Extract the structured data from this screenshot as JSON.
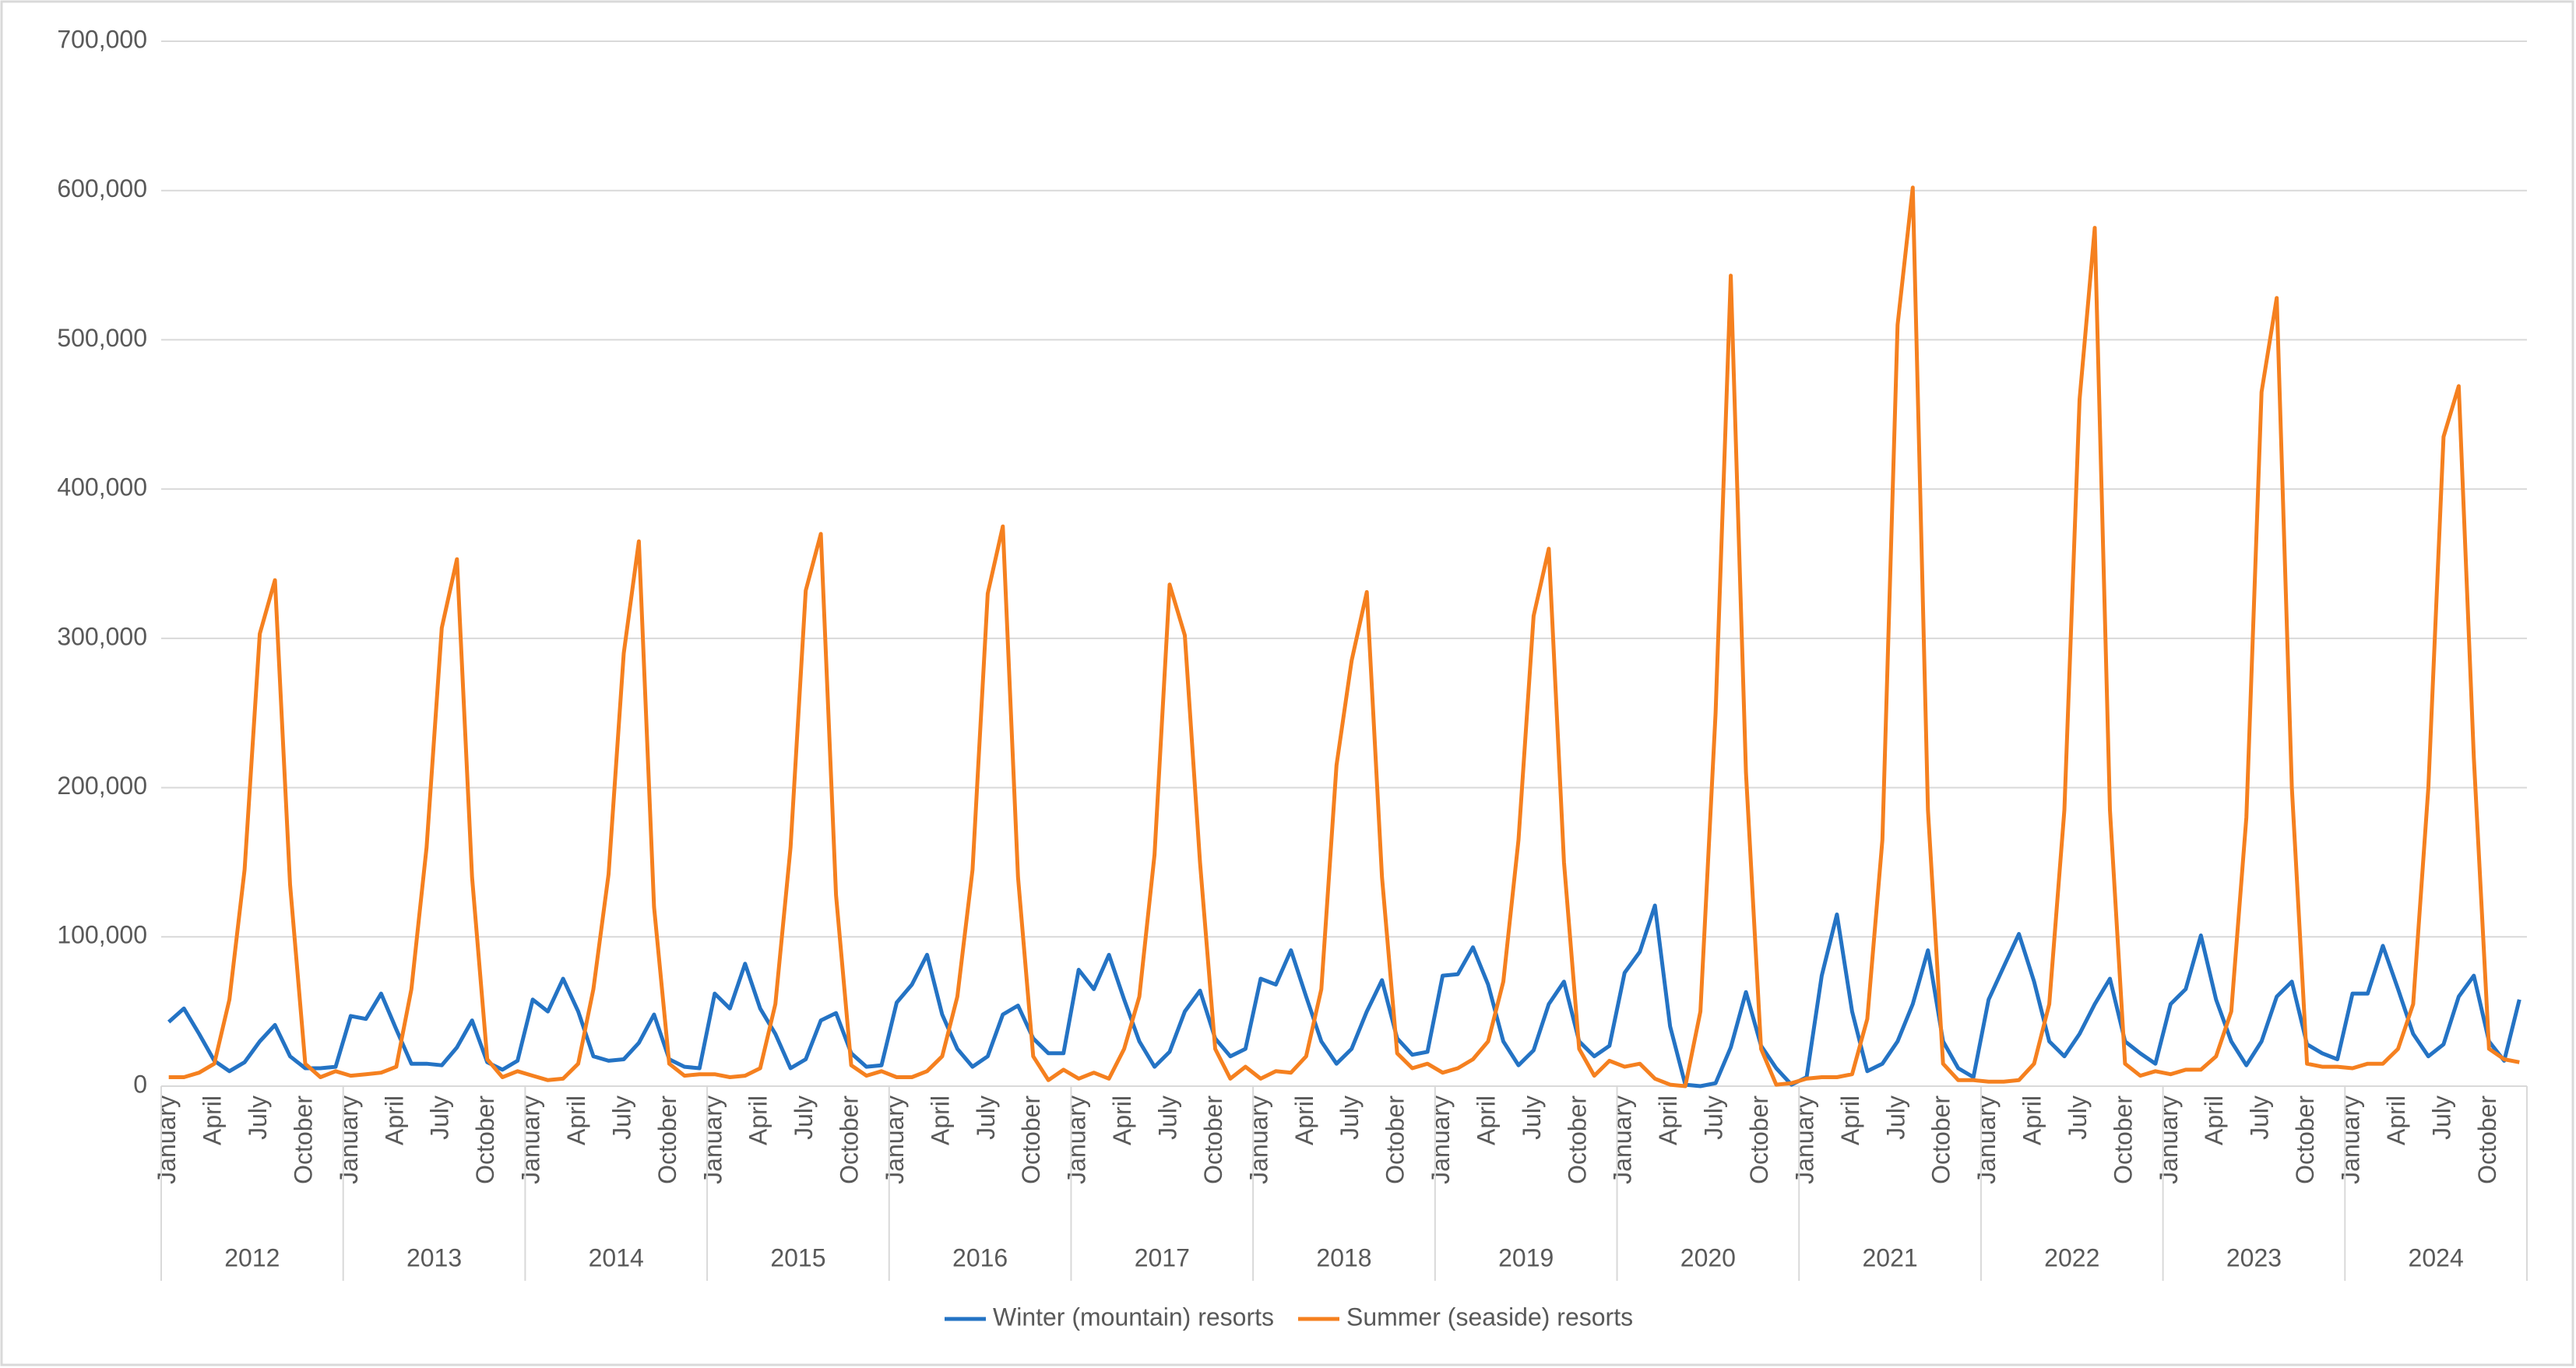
{
  "chart_data": {
    "type": "line",
    "categories": [
      "January",
      null,
      null,
      "April",
      null,
      null,
      "July",
      null,
      null,
      "October",
      null,
      null,
      "January",
      null,
      null,
      "April",
      null,
      null,
      "July",
      null,
      null,
      "October",
      null,
      null,
      "January",
      null,
      null,
      "April",
      null,
      null,
      "July",
      null,
      null,
      "October",
      null,
      null,
      "January",
      null,
      null,
      "April",
      null,
      null,
      "July",
      null,
      null,
      "October",
      null,
      null,
      "January",
      null,
      null,
      "April",
      null,
      null,
      "July",
      null,
      null,
      "October",
      null,
      null,
      "January",
      null,
      null,
      "April",
      null,
      null,
      "July",
      null,
      null,
      "October",
      null,
      null,
      "January",
      null,
      null,
      "April",
      null,
      null,
      "July",
      null,
      null,
      "October",
      null,
      null,
      "January",
      null,
      null,
      "April",
      null,
      null,
      "July",
      null,
      null,
      "October",
      null,
      null,
      "January",
      null,
      null,
      "April",
      null,
      null,
      "July",
      null,
      null,
      "October",
      null,
      null,
      "January",
      null,
      null,
      "April",
      null,
      null,
      "July",
      null,
      null,
      "October",
      null,
      null,
      "January",
      null,
      null,
      "April",
      null,
      null,
      "July",
      null,
      null,
      "October",
      null,
      null,
      "January",
      null,
      null,
      "April",
      null,
      null,
      "July",
      null,
      null,
      "October",
      null,
      null,
      "January",
      null,
      null,
      "April",
      null,
      null,
      "July",
      null,
      null,
      "October",
      null,
      null
    ],
    "years": [
      "2012",
      "2013",
      "2014",
      "2015",
      "2016",
      "2017",
      "2018",
      "2019",
      "2020",
      "2021",
      "2022",
      "2023",
      "2024"
    ],
    "series": [
      {
        "name": "Winter (mountain) resorts",
        "color": "#2473c4",
        "values": [
          43000,
          52000,
          35000,
          17000,
          10000,
          16000,
          30000,
          41000,
          20000,
          12000,
          12000,
          13000,
          47000,
          45000,
          62000,
          38000,
          15000,
          15000,
          14000,
          26000,
          44000,
          16000,
          11000,
          17000,
          58000,
          50000,
          72000,
          50000,
          20000,
          17000,
          18000,
          29000,
          48000,
          18000,
          13000,
          12000,
          62000,
          52000,
          82000,
          52000,
          35000,
          12000,
          18000,
          44000,
          49000,
          22000,
          13000,
          14000,
          56000,
          68000,
          88000,
          48000,
          25000,
          13000,
          20000,
          48000,
          54000,
          32000,
          22000,
          22000,
          78000,
          65000,
          88000,
          58000,
          30000,
          13000,
          23000,
          50000,
          64000,
          32000,
          20000,
          25000,
          72000,
          68000,
          91000,
          60000,
          30000,
          15000,
          25000,
          50000,
          71000,
          32000,
          21000,
          23000,
          74000,
          75000,
          93000,
          68000,
          30000,
          14000,
          24000,
          55000,
          70000,
          30000,
          20000,
          27000,
          76000,
          90000,
          121000,
          40000,
          1000,
          0,
          2000,
          26000,
          63000,
          27000,
          12000,
          1000,
          6000,
          74000,
          115000,
          50000,
          10000,
          15000,
          30000,
          55000,
          91000,
          30000,
          12000,
          6000,
          58000,
          80000,
          102000,
          70000,
          30000,
          20000,
          35000,
          55000,
          72000,
          30000,
          22000,
          15000,
          55000,
          65000,
          101000,
          58000,
          30000,
          14000,
          30000,
          60000,
          70000,
          28000,
          22000,
          18000,
          62000,
          62000,
          94000,
          65000,
          35000,
          20000,
          28000,
          60000,
          74000,
          30000,
          17000,
          58000
        ]
      },
      {
        "name": "Summer (seaside) resorts",
        "color": "#f5801f",
        "values": [
          6000,
          6000,
          9000,
          15000,
          58000,
          145000,
          303000,
          339000,
          135000,
          15000,
          6000,
          10000,
          7000,
          8000,
          9000,
          13000,
          65000,
          160000,
          307000,
          353000,
          140000,
          18000,
          6000,
          10000,
          7000,
          4000,
          5000,
          15000,
          65000,
          142000,
          290000,
          365000,
          120000,
          15000,
          7000,
          8000,
          8000,
          6000,
          7000,
          12000,
          55000,
          160000,
          332000,
          370000,
          128000,
          14000,
          7000,
          10000,
          6000,
          6000,
          10000,
          20000,
          60000,
          145000,
          330000,
          375000,
          140000,
          20000,
          4000,
          11000,
          5000,
          9000,
          5000,
          25000,
          60000,
          155000,
          336000,
          302000,
          150000,
          25000,
          5000,
          13000,
          5000,
          10000,
          9000,
          20000,
          65000,
          215000,
          285000,
          331000,
          140000,
          22000,
          12000,
          15000,
          9000,
          12000,
          18000,
          30000,
          70000,
          165000,
          315000,
          360000,
          150000,
          25000,
          7000,
          17000,
          13000,
          15000,
          5000,
          1000,
          0,
          50000,
          250000,
          543000,
          210000,
          25000,
          1000,
          2000,
          5000,
          6000,
          6000,
          8000,
          45000,
          165000,
          510000,
          602000,
          185000,
          15000,
          4000,
          4000,
          3000,
          3000,
          4000,
          15000,
          55000,
          185000,
          460000,
          575000,
          185000,
          15000,
          7000,
          10000,
          8000,
          11000,
          11000,
          20000,
          50000,
          180000,
          465000,
          528000,
          200000,
          15000,
          13000,
          13000,
          12000,
          15000,
          15000,
          25000,
          55000,
          200000,
          435000,
          469000,
          220000,
          25000,
          18000,
          16000
        ]
      }
    ],
    "ylim": [
      0,
      700000
    ],
    "yticks": [
      0,
      {
        "value": 100000,
        "label": "100,000"
      },
      {
        "value": 200000,
        "label": "200,000"
      },
      {
        "value": 300000,
        "label": "300,000"
      },
      {
        "value": 400000,
        "label": "400,000"
      },
      {
        "value": 500000,
        "label": "500,000"
      },
      {
        "value": 600000,
        "label": "600,000"
      },
      {
        "value": 700000,
        "label": "700,000"
      }
    ],
    "grid": true,
    "legend": "bottom"
  }
}
